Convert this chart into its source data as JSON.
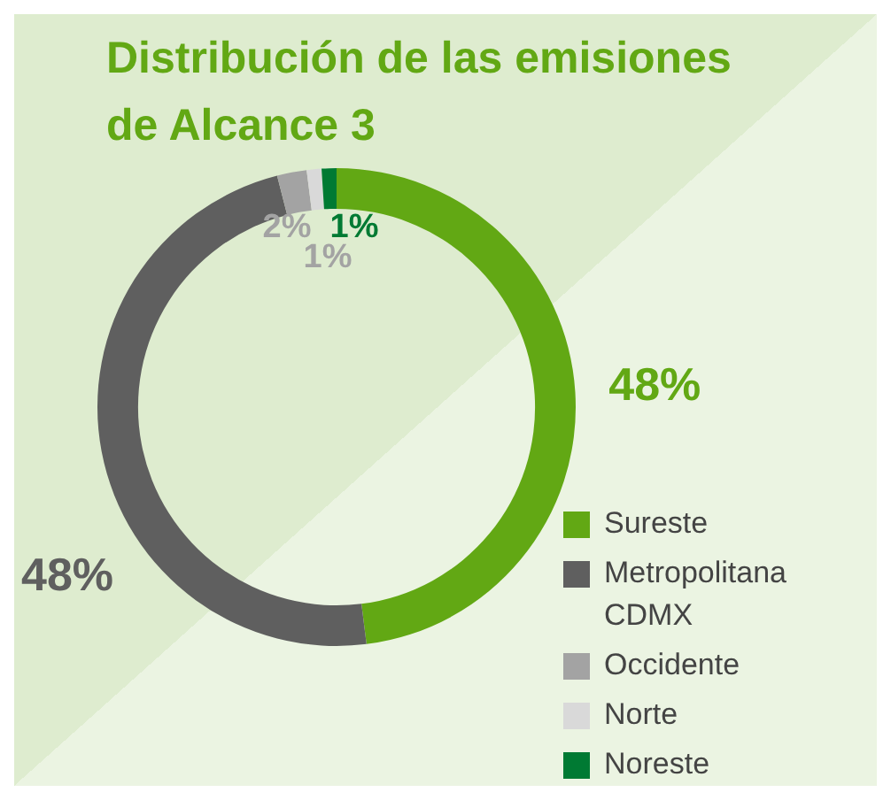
{
  "chart_data": {
    "type": "donut",
    "title": "Distribución de las emisiones de Alcance 3",
    "categories": [
      "Sureste",
      "Metropolitana CDMX",
      "Occidente",
      "Norte",
      "Noreste"
    ],
    "values": [
      48,
      48,
      2,
      1,
      1
    ],
    "colors": [
      "#62a814",
      "#5f5f5f",
      "#a3a3a3",
      "#d9d9d9",
      "#007a33"
    ],
    "value_labels": [
      "48%",
      "48%",
      "2%",
      "1%",
      "1%"
    ],
    "legend": "bottom right"
  }
}
